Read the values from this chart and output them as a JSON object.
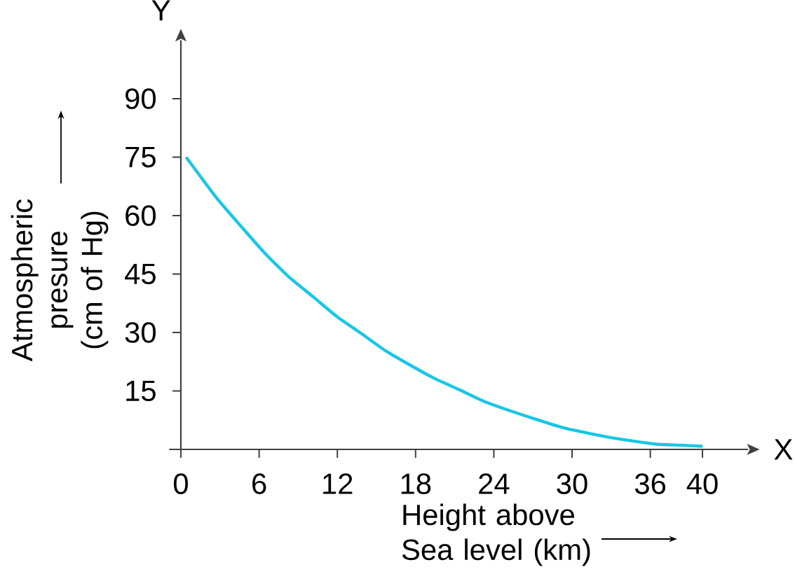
{
  "chart_data": {
    "type": "line",
    "xlabel": "Height above Sea level (km)",
    "ylabel": "Atmospheric presure (cm of Hg)",
    "annotations": [
      "X",
      "Y"
    ],
    "x": [
      0.4,
      2.7,
      4.6,
      6.4,
      8.3,
      10.2,
      12,
      13.9,
      15.7,
      17.6,
      19.4,
      21.3,
      23.2,
      25.8,
      29.5,
      33.2,
      36.3,
      38.2,
      40
    ],
    "series": [
      {
        "color": "#17c6e6",
        "values": [
          75,
          64.7,
          57.3,
          50.5,
          44.2,
          39,
          34,
          29.6,
          25.3,
          21.6,
          18.3,
          15.4,
          12.4,
          9.3,
          5.4,
          2.9,
          1.4,
          1.1,
          0.8
        ]
      }
    ],
    "xlim": [
      -0.9,
      43.5
    ],
    "ylim": [
      0,
      105
    ],
    "xticks": [
      0,
      6,
      12,
      18,
      24,
      30,
      36,
      40
    ],
    "yticks": [
      15,
      30,
      45,
      60,
      75,
      90
    ]
  }
}
